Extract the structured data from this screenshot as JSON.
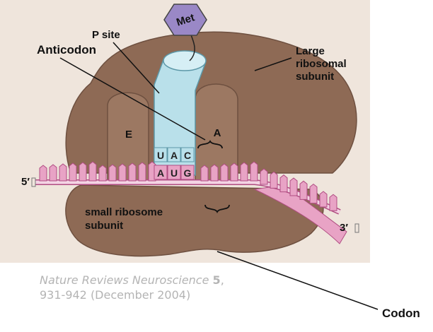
{
  "labels": {
    "met": "Met",
    "p_site": "P site",
    "anticodon": "Anticodon",
    "large_subunit_line1": "Large",
    "large_subunit_line2": "ribosomal",
    "large_subunit_line3": "subunit",
    "site_e": "E",
    "site_a": "A",
    "five_prime": "5′",
    "three_prime": "3′",
    "small_subunit_line1": "small ribosome",
    "small_subunit_line2": "subunit",
    "codon": "Codon"
  },
  "anticodon_bases": [
    "U",
    "A",
    "C"
  ],
  "codon_bases": [
    "A",
    "U",
    "G"
  ],
  "citation": {
    "journal": "Nature Reviews Neuroscience",
    "volume": "5",
    "sep": ",",
    "line2": "931-942 (December 2004)"
  },
  "colors": {
    "background_panel": "#efe5dc",
    "ribosome": "#8e6a55",
    "ribosome_shadow": "#6e5040",
    "trna": "#b9e0ea",
    "trna_outline": "#5d98a8",
    "mrna": "#e8a3c5",
    "mrna_outline": "#b04d82",
    "met_hexagon": "#9a88c6"
  }
}
